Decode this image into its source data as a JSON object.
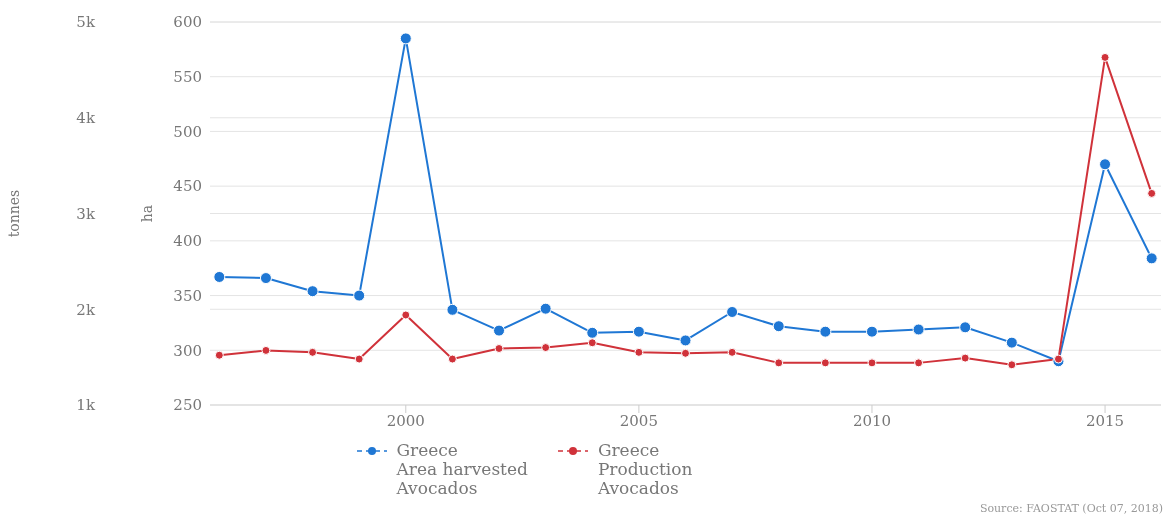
{
  "chart_data": {
    "type": "line",
    "x": [
      1996,
      1997,
      1998,
      1999,
      2000,
      2001,
      2002,
      2003,
      2004,
      2005,
      2006,
      2007,
      2008,
      2009,
      2010,
      2011,
      2012,
      2013,
      2014,
      2015,
      2016
    ],
    "series": [
      {
        "name": "Greece\nArea harvested\nAvocados",
        "color": "#1f77d4",
        "values": [
          367,
          366,
          354,
          350,
          585,
          337,
          318,
          338,
          316,
          317,
          309,
          335,
          322,
          317,
          317,
          319,
          321,
          307,
          290,
          470,
          384
        ]
      },
      {
        "name": "Greece\nProduction\nAvocados",
        "color": "#d0323a",
        "axis": "y2",
        "values": [
          1520,
          1570,
          1550,
          1480,
          1940,
          1480,
          1590,
          1600,
          1650,
          1550,
          1540,
          1550,
          1440,
          1440,
          1440,
          1440,
          1490,
          1420,
          1480,
          4630,
          3210
        ]
      }
    ],
    "ylabel": "ha",
    "y2label": "tonnes",
    "xlim": [
      1995.8,
      2016.2
    ],
    "xticks": [
      2000,
      2005,
      2010,
      2015
    ],
    "ylim": [
      250,
      600
    ],
    "yticks": [
      250,
      300,
      350,
      400,
      450,
      500,
      550,
      600
    ],
    "y2lim": [
      1000,
      5000
    ],
    "y2ticks": [
      {
        "value": 1000,
        "label": "1k"
      },
      {
        "value": 2000,
        "label": "2k"
      },
      {
        "value": 3000,
        "label": "3k"
      },
      {
        "value": 4000,
        "label": "4k"
      },
      {
        "value": 5000,
        "label": "5k"
      }
    ],
    "grid": "y",
    "legend": "bottom",
    "marker": "circle",
    "line_style": "solid",
    "annotations": [
      "Source: FAOSTAT (Oct 07, 2018)"
    ]
  }
}
